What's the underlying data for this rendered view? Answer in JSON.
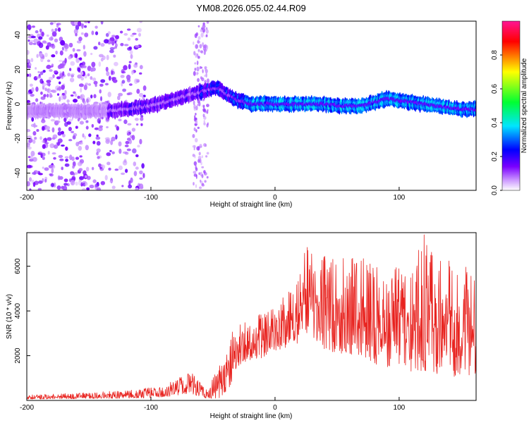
{
  "title": "YM08.2026.055.02.44.R09",
  "colors": {
    "signal_line": "#e8231f",
    "colormap": [
      "#ffffff",
      "#cc99ff",
      "#7a00ff",
      "#0000ff",
      "#00e5ff",
      "#00ff33",
      "#ffff00",
      "#ff0000",
      "#ff1493"
    ]
  },
  "chart_data": [
    {
      "type": "heatmap",
      "name": "spectrogram",
      "xlabel": "Height of straight line (km)",
      "ylabel": "Frequency (Hz)",
      "xlim": [
        -200,
        162
      ],
      "ylim": [
        -50,
        48
      ],
      "xticks": [
        "-200",
        "-100",
        "0",
        "100"
      ],
      "yticks": [
        "-40",
        "-20",
        "0",
        "20",
        "40"
      ],
      "grid": false,
      "ridge": {
        "x": [
          -135,
          -120,
          -110,
          -100,
          -90,
          -80,
          -70,
          -60,
          -50,
          -45,
          -40,
          -30,
          -20,
          -10,
          0,
          10,
          20,
          30,
          40,
          50,
          60,
          70,
          80,
          90,
          100,
          110,
          120,
          130,
          140,
          150,
          160
        ],
        "freq": [
          -4,
          -3,
          -2,
          -1,
          1,
          3,
          5,
          7,
          9,
          9,
          6,
          2,
          0,
          0,
          0,
          0,
          0,
          0,
          0,
          -1,
          -1,
          -1,
          1,
          3,
          2,
          1,
          0,
          -1,
          -2,
          -3,
          -3
        ]
      },
      "colorbar": {
        "label": "Normalized spectral amplitude",
        "range": [
          0,
          1
        ],
        "ticks": [
          "0.0",
          "0.2",
          "0.4",
          "0.6",
          "0.8"
        ]
      }
    },
    {
      "type": "line",
      "name": "snr",
      "xlabel": "Height of straight line (km)",
      "ylabel": "SNR (10 * v/v)",
      "xlim": [
        -200,
        162
      ],
      "ylim": [
        0,
        7500
      ],
      "xticks": [
        "-200",
        "-100",
        "0",
        "100"
      ],
      "yticks": [
        "2000",
        "4000",
        "6000"
      ],
      "grid": false,
      "envelope": {
        "x": [
          -200,
          -150,
          -110,
          -90,
          -75,
          -68,
          -60,
          -55,
          -45,
          -38,
          -35,
          -30,
          -25,
          -20,
          -10,
          0,
          10,
          20,
          25,
          30,
          40,
          50,
          60,
          70,
          80,
          90,
          100,
          110,
          120,
          130,
          140,
          150,
          162
        ],
        "lo": [
          50,
          80,
          100,
          150,
          250,
          300,
          150,
          80,
          100,
          300,
          800,
          1500,
          1700,
          1800,
          1900,
          2200,
          2400,
          2500,
          2800,
          2700,
          2300,
          2100,
          2000,
          2000,
          1600,
          1500,
          1500,
          1300,
          1300,
          1200,
          1100,
          1000,
          1200
        ],
        "hi": [
          250,
          350,
          500,
          700,
          1100,
          1300,
          800,
          500,
          1600,
          2300,
          3700,
          3500,
          3700,
          3400,
          4000,
          4300,
          4800,
          5600,
          6900,
          6700,
          6500,
          6400,
          6500,
          6500,
          5900,
          6200,
          6200,
          6400,
          7500,
          6600,
          6300,
          6400,
          5500
        ]
      }
    }
  ]
}
